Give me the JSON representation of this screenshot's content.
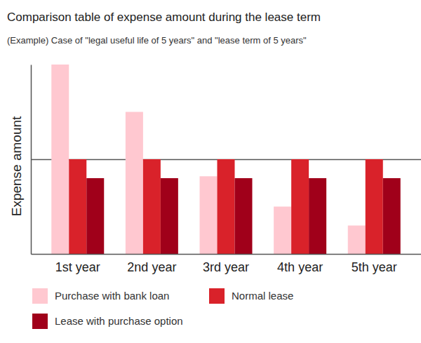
{
  "chart_data": {
    "type": "bar",
    "title": "Comparison table of expense amount during the lease term",
    "subtitle": "(Example) Case of \"legal useful life of 5 years\" and \"lease term of 5 years\"",
    "ylabel": "Expense amount",
    "categories": [
      "1st year",
      "2nd year",
      "3rd year",
      "4th year",
      "5th year"
    ],
    "series": [
      {
        "name": "Purchase with bank loan",
        "color": "#ffc8d0",
        "values": [
          100,
          75,
          41,
          25,
          15
        ]
      },
      {
        "name": "Normal lease",
        "color": "#d9222a",
        "values": [
          50,
          50,
          50,
          50,
          50
        ]
      },
      {
        "name": "Lease with purchase option",
        "color": "#a0001a",
        "values": [
          40,
          40,
          40,
          40,
          40
        ]
      }
    ],
    "ylim": [
      0,
      100
    ],
    "yticks": [
      50
    ],
    "grid": true,
    "tick_labels": "x",
    "legend": "bottom"
  }
}
